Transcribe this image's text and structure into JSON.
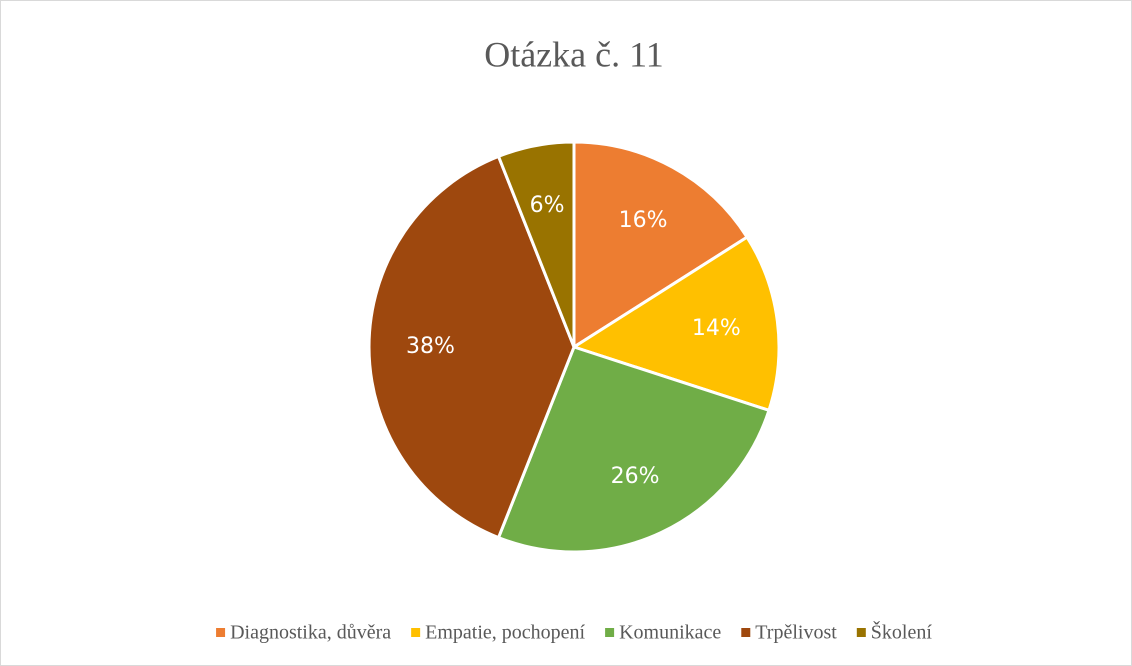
{
  "chart_data": {
    "type": "pie",
    "title": "Otázka č. 11",
    "categories": [
      "Diagnostika, důvěra",
      "Empatie, pochopení",
      "Komunikace",
      "Trpělivost",
      "Školení"
    ],
    "values": [
      16,
      14,
      26,
      38,
      6
    ],
    "value_labels": [
      "16%",
      "14%",
      "26%",
      "38%",
      "6%"
    ],
    "colors": [
      "#ED7D31",
      "#FFC000",
      "#70AD47",
      "#9E480E",
      "#997300"
    ],
    "legend": "bottom"
  }
}
